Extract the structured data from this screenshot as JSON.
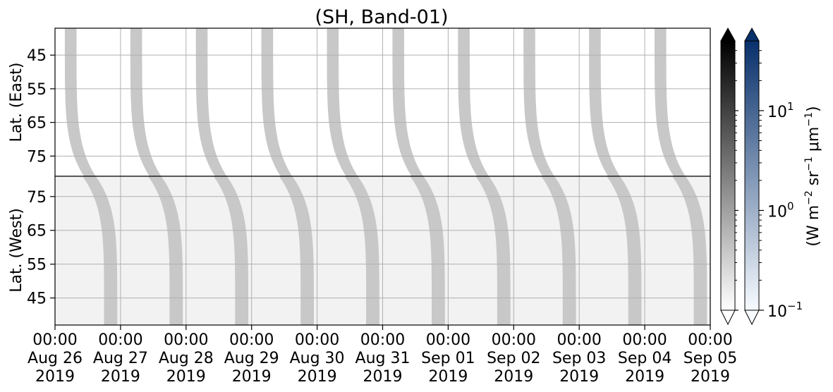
{
  "chart_data": {
    "type": "heatmap",
    "title": "(SH, Band-01)",
    "panels": [
      {
        "name": "east",
        "ylabel": "Lat. (East)",
        "yticks": [
          "45",
          "55",
          "65",
          "75"
        ],
        "ylim": [
          37,
          81
        ],
        "inverted": false
      },
      {
        "name": "west",
        "ylabel": "Lat. (West)",
        "yticks": [
          "75",
          "65",
          "55",
          "45"
        ],
        "ylim": [
          81,
          37
        ],
        "inverted": true
      }
    ],
    "x_ticks": [
      {
        "time": "00:00",
        "date": "Aug 26",
        "year": "2019"
      },
      {
        "time": "00:00",
        "date": "Aug 27",
        "year": "2019"
      },
      {
        "time": "00:00",
        "date": "Aug 28",
        "year": "2019"
      },
      {
        "time": "00:00",
        "date": "Aug 29",
        "year": "2019"
      },
      {
        "time": "00:00",
        "date": "Aug 30",
        "year": "2019"
      },
      {
        "time": "00:00",
        "date": "Aug 31",
        "year": "2019"
      },
      {
        "time": "00:00",
        "date": "Sep 01",
        "year": "2019"
      },
      {
        "time": "00:00",
        "date": "Sep 02",
        "year": "2019"
      },
      {
        "time": "00:00",
        "date": "Sep 03",
        "year": "2019"
      },
      {
        "time": "00:00",
        "date": "Sep 04",
        "year": "2019"
      },
      {
        "time": "00:00",
        "date": "Sep 05",
        "year": "2019"
      }
    ],
    "xlim": [
      "2019-08-26 00:00",
      "2019-09-05 00:00"
    ],
    "grid": true,
    "colorbars": [
      {
        "name": "gray",
        "scale": "log",
        "range": [
          0.1,
          50
        ],
        "colors": [
          "#ffffff",
          "#000000"
        ],
        "extend": "both"
      },
      {
        "name": "blue",
        "scale": "log",
        "range": [
          0.1,
          50
        ],
        "colors": [
          "#f7fbff",
          "#08306b"
        ],
        "extend": "both"
      }
    ],
    "colorbar_ticks": [
      {
        "base": "10",
        "exp": "−1",
        "value": 0.1
      },
      {
        "base": "10",
        "exp": "0",
        "value": 1
      },
      {
        "base": "10",
        "exp": "1",
        "value": 10
      }
    ],
    "colorbar_label": {
      "prefix": "(W m",
      "e1": "−2",
      "mid1": " sr",
      "e2": "−1",
      "mid2": " μm",
      "e3": "−1",
      "suffix": ")"
    },
    "band_color": "#c8c8c8",
    "background_color": "#f2f2f2",
    "east_swaths": [
      {
        "start_day": 0.15,
        "end_day": 0.62
      },
      {
        "start_day": 1.15,
        "end_day": 1.62
      },
      {
        "start_day": 2.15,
        "end_day": 2.62
      },
      {
        "start_day": 3.15,
        "end_day": 3.62
      },
      {
        "start_day": 4.15,
        "end_day": 4.62
      },
      {
        "start_day": 5.15,
        "end_day": 5.62
      },
      {
        "start_day": 6.15,
        "end_day": 6.62
      },
      {
        "start_day": 7.15,
        "end_day": 7.62
      },
      {
        "start_day": 8.15,
        "end_day": 8.62
      },
      {
        "start_day": 9.15,
        "end_day": 9.62
      }
    ],
    "west_swaths": [
      {
        "start_day": 0.42,
        "end_day": 0.95
      },
      {
        "start_day": 1.42,
        "end_day": 1.95
      },
      {
        "start_day": 2.42,
        "end_day": 2.95
      },
      {
        "start_day": 3.42,
        "end_day": 3.95
      },
      {
        "start_day": 4.42,
        "end_day": 4.95
      },
      {
        "start_day": 5.42,
        "end_day": 5.95
      },
      {
        "start_day": 6.42,
        "end_day": 6.95
      },
      {
        "start_day": 7.42,
        "end_day": 7.95
      },
      {
        "start_day": 8.42,
        "end_day": 8.95
      },
      {
        "start_day": 9.42,
        "end_day": 9.95
      }
    ]
  }
}
